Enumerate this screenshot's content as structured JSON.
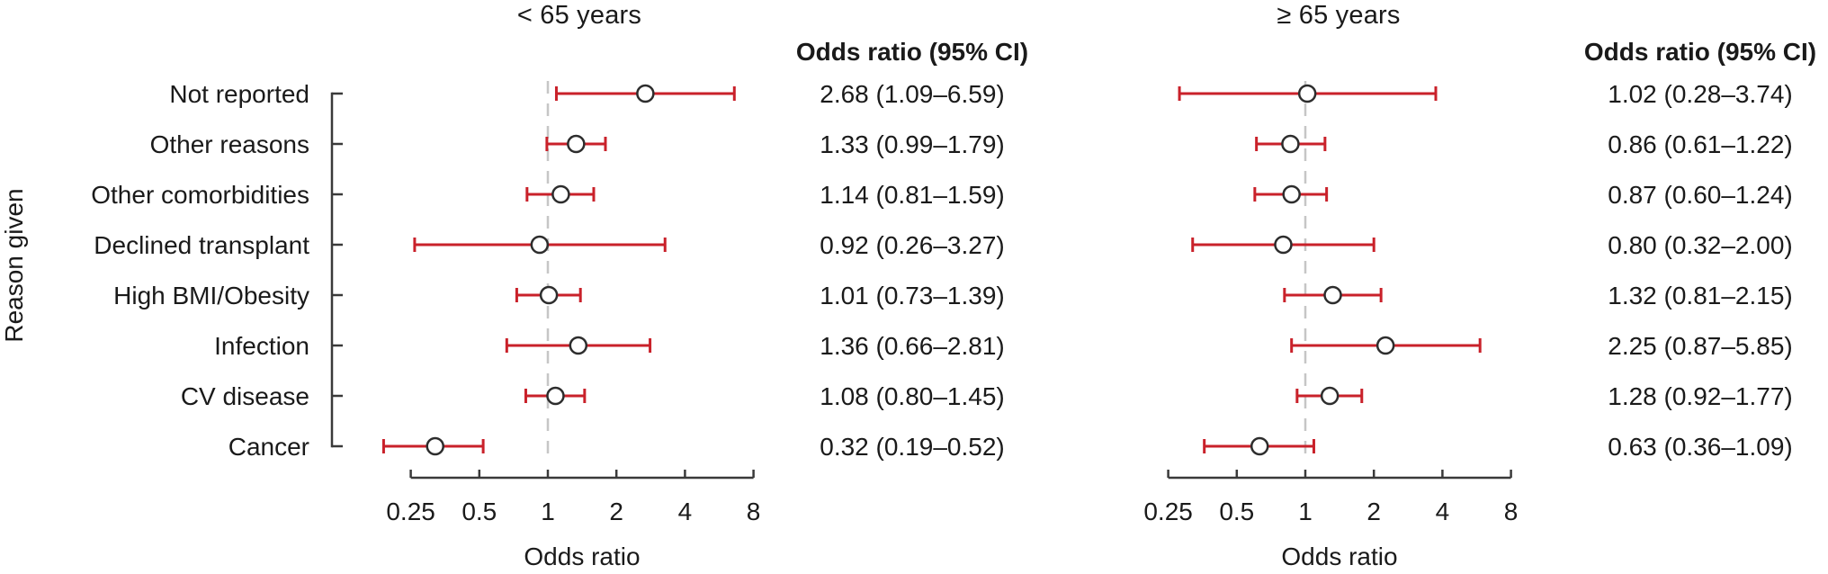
{
  "figure": {
    "kind": "forest-plot, two panels sharing category axis",
    "colors": {
      "error_bar": "#c9212a",
      "marker_fill": "#ffffff",
      "marker_stroke": "#2d2d2d",
      "axis": "#3a3a3a",
      "reference_line": "#c6c6c6",
      "text": "#1a1a1a",
      "background": "#ffffff"
    }
  },
  "chart_data": [
    {
      "type": "scatter",
      "subtype": "forest",
      "title": "< 65 years",
      "xlabel": "Odds ratio",
      "ylabel": "Reason given",
      "ci_header": "Odds ratio (95% CI)",
      "x_scale": "log2",
      "xlim": [
        0.25,
        8
      ],
      "x_ticks": [
        0.25,
        0.5,
        1,
        2,
        4,
        8
      ],
      "x_tick_labels": [
        "0.25",
        "0.5",
        "1",
        "2",
        "4",
        "8"
      ],
      "reference_line": 1,
      "grid": false,
      "categories": [
        "Not reported",
        "Other reasons",
        "Other comorbidities",
        "Declined transplant",
        "High BMI/Obesity",
        "Infection",
        "CV disease",
        "Cancer"
      ],
      "points": [
        {
          "or": 2.68,
          "ci_low": 1.09,
          "ci_high": 6.59,
          "label": "2.68 (1.09–6.59)"
        },
        {
          "or": 1.33,
          "ci_low": 0.99,
          "ci_high": 1.79,
          "label": "1.33 (0.99–1.79)"
        },
        {
          "or": 1.14,
          "ci_low": 0.81,
          "ci_high": 1.59,
          "label": "1.14 (0.81–1.59)"
        },
        {
          "or": 0.92,
          "ci_low": 0.26,
          "ci_high": 3.27,
          "label": "0.92 (0.26–3.27)"
        },
        {
          "or": 1.01,
          "ci_low": 0.73,
          "ci_high": 1.39,
          "label": "1.01 (0.73–1.39)"
        },
        {
          "or": 1.36,
          "ci_low": 0.66,
          "ci_high": 2.81,
          "label": "1.36 (0.66–2.81)"
        },
        {
          "or": 1.08,
          "ci_low": 0.8,
          "ci_high": 1.45,
          "label": "1.08 (0.80–1.45)"
        },
        {
          "or": 0.32,
          "ci_low": 0.19,
          "ci_high": 0.52,
          "label": "0.32 (0.19–0.52)"
        }
      ]
    },
    {
      "type": "scatter",
      "subtype": "forest",
      "title": "≥ 65 years",
      "xlabel": "Odds ratio",
      "ylabel": "",
      "ci_header": "Odds ratio (95% CI)",
      "x_scale": "log2",
      "xlim": [
        0.25,
        8
      ],
      "x_ticks": [
        0.25,
        0.5,
        1,
        2,
        4,
        8
      ],
      "x_tick_labels": [
        "0.25",
        "0.5",
        "1",
        "2",
        "4",
        "8"
      ],
      "reference_line": 1,
      "grid": false,
      "categories": [
        "Not reported",
        "Other reasons",
        "Other comorbidities",
        "Declined transplant",
        "High BMI/Obesity",
        "Infection",
        "CV disease",
        "Cancer"
      ],
      "points": [
        {
          "or": 1.02,
          "ci_low": 0.28,
          "ci_high": 3.74,
          "label": "1.02 (0.28–3.74)"
        },
        {
          "or": 0.86,
          "ci_low": 0.61,
          "ci_high": 1.22,
          "label": "0.86 (0.61–1.22)"
        },
        {
          "or": 0.87,
          "ci_low": 0.6,
          "ci_high": 1.24,
          "label": "0.87 (0.60–1.24)"
        },
        {
          "or": 0.8,
          "ci_low": 0.32,
          "ci_high": 2.0,
          "label": "0.80 (0.32–2.00)"
        },
        {
          "or": 1.32,
          "ci_low": 0.81,
          "ci_high": 2.15,
          "label": "1.32 (0.81–2.15)"
        },
        {
          "or": 2.25,
          "ci_low": 0.87,
          "ci_high": 5.85,
          "label": "2.25 (0.87–5.85)"
        },
        {
          "or": 1.28,
          "ci_low": 0.92,
          "ci_high": 1.77,
          "label": "1.28 (0.92–1.77)"
        },
        {
          "or": 0.63,
          "ci_low": 0.36,
          "ci_high": 1.09,
          "label": "0.63 (0.36–1.09)"
        }
      ]
    }
  ]
}
